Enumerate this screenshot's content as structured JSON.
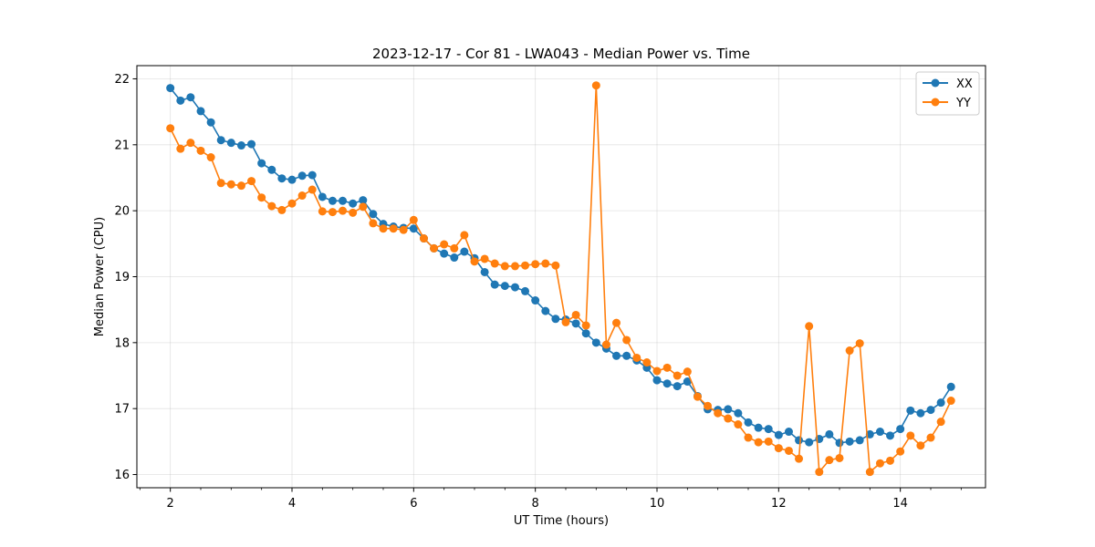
{
  "chart_data": {
    "type": "line",
    "title": "2023-12-17 - Cor 81 - LWA043 - Median Power vs. Time",
    "xlabel": "UT Time (hours)",
    "ylabel": "Median Power (CPU)",
    "xlim": [
      1.45,
      15.4
    ],
    "ylim": [
      15.8,
      22.2
    ],
    "x_ticks": [
      2,
      4,
      6,
      8,
      10,
      12,
      14
    ],
    "x_tick_labels": [
      "2",
      "4",
      "6",
      "8",
      "10",
      "12",
      "14"
    ],
    "x_minor_ticks": [
      1.5,
      2.5,
      3,
      3.5,
      4.5,
      5,
      5.5,
      6.5,
      7,
      7.5,
      8.5,
      9,
      9.5,
      10.5,
      11,
      11.5,
      12.5,
      13,
      13.5,
      14.5,
      15
    ],
    "y_ticks": [
      16,
      17,
      18,
      19,
      20,
      21,
      22
    ],
    "y_tick_labels": [
      "16",
      "17",
      "18",
      "19",
      "20",
      "21",
      "22"
    ],
    "grid": true,
    "legend_position": "top-right",
    "x": [
      2.0,
      2.167,
      2.333,
      2.5,
      2.667,
      2.833,
      3.0,
      3.167,
      3.333,
      3.5,
      3.667,
      3.833,
      4.0,
      4.167,
      4.333,
      4.5,
      4.667,
      4.833,
      5.0,
      5.167,
      5.333,
      5.5,
      5.667,
      5.833,
      6.0,
      6.167,
      6.333,
      6.5,
      6.667,
      6.833,
      7.0,
      7.167,
      7.333,
      7.5,
      7.667,
      7.833,
      8.0,
      8.167,
      8.333,
      8.5,
      8.667,
      8.833,
      9.0,
      9.167,
      9.333,
      9.5,
      9.667,
      9.833,
      10.0,
      10.167,
      10.333,
      10.5,
      10.667,
      10.833,
      11.0,
      11.167,
      11.333,
      11.5,
      11.667,
      11.833,
      12.0,
      12.167,
      12.333,
      12.5,
      12.667,
      12.833,
      13.0,
      13.167,
      13.333,
      13.5,
      13.667,
      13.833,
      14.0,
      14.167,
      14.333,
      14.5,
      14.667,
      14.833
    ],
    "series": [
      {
        "name": "XX",
        "color": "#1f77b4",
        "values": [
          21.86,
          21.67,
          21.72,
          21.51,
          21.34,
          21.07,
          21.03,
          20.99,
          21.01,
          20.72,
          20.62,
          20.49,
          20.47,
          20.53,
          20.54,
          20.21,
          20.15,
          20.15,
          20.11,
          20.16,
          19.95,
          19.8,
          19.76,
          19.74,
          19.73,
          19.58,
          19.43,
          19.35,
          19.29,
          19.38,
          19.28,
          19.07,
          18.88,
          18.86,
          18.84,
          18.78,
          18.64,
          18.48,
          18.36,
          18.35,
          18.29,
          18.14,
          18.0,
          17.91,
          17.8,
          17.8,
          17.73,
          17.62,
          17.43,
          17.38,
          17.34,
          17.41,
          17.19,
          16.99,
          16.98,
          16.99,
          16.93,
          16.79,
          16.71,
          16.69,
          16.6,
          16.65,
          16.52,
          16.49,
          16.54,
          16.61,
          16.48,
          16.5,
          16.52,
          16.61,
          16.65,
          16.59,
          16.69,
          16.97,
          16.93,
          16.98,
          17.09,
          17.33
        ]
      },
      {
        "name": "YY",
        "color": "#ff7f0e",
        "values": [
          21.25,
          20.94,
          21.03,
          20.91,
          20.81,
          20.42,
          20.4,
          20.38,
          20.45,
          20.2,
          20.07,
          20.01,
          20.11,
          20.23,
          20.32,
          19.99,
          19.98,
          20.0,
          19.97,
          20.06,
          19.81,
          19.73,
          19.73,
          19.71,
          19.86,
          19.58,
          19.43,
          19.49,
          19.43,
          19.63,
          19.23,
          19.27,
          19.2,
          19.16,
          19.16,
          19.17,
          19.19,
          19.2,
          19.17,
          18.31,
          18.42,
          18.26,
          21.9,
          17.97,
          18.3,
          18.04,
          17.77,
          17.7,
          17.57,
          17.62,
          17.5,
          17.56,
          17.18,
          17.04,
          16.93,
          16.85,
          16.76,
          16.56,
          16.49,
          16.5,
          16.4,
          16.36,
          16.24,
          18.25,
          16.04,
          16.22,
          16.25,
          17.88,
          17.99,
          16.04,
          16.17,
          16.21,
          16.35,
          16.59,
          16.44,
          16.56,
          16.8,
          17.12
        ]
      }
    ]
  }
}
